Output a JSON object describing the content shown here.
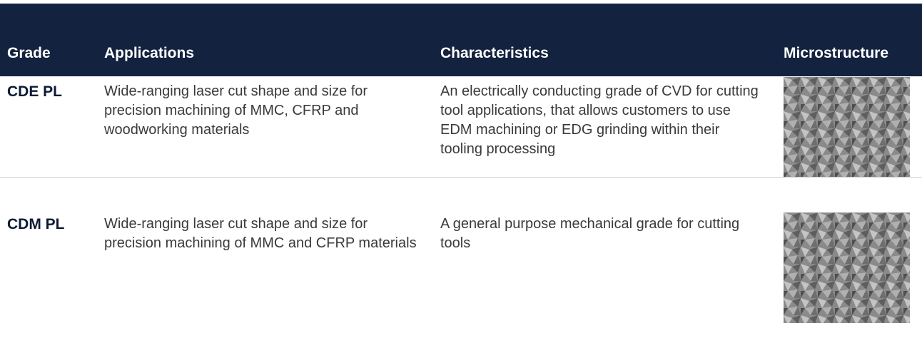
{
  "table": {
    "headers": [
      "Grade",
      "Applications",
      "Characteristics",
      "Microstructure"
    ],
    "rows": [
      [
        "CDE PL",
        "Wide-ranging laser cut shape and size for precision machining of MMC, CFRP and woodworking materials",
        "An electrically conducting grade of CVD for cutting tool applications, that allows customers to use EDM machining or EDG grinding within their tooling processing"
      ],
      [
        "CDM PL",
        "Wide-ranging laser cut shape and size for precision machining of MMC and CFRP materials",
        "A general purpose mechanical grade for cutting tools"
      ]
    ]
  }
}
